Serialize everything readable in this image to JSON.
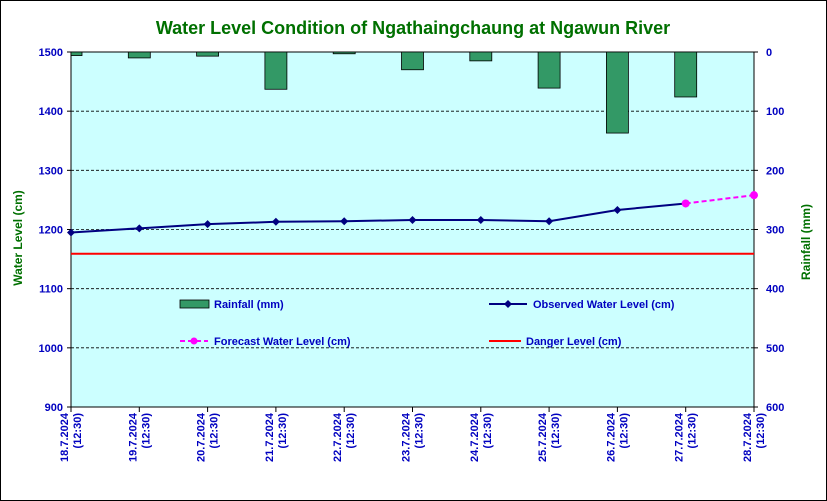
{
  "colors": {
    "plot_bg": "#ccffff",
    "title": "#007000",
    "left_axis_title": "#007000",
    "right_axis_title": "#007000",
    "tick_text": "#0000c0",
    "rainfall_fill": "#339966",
    "observed": "#000080",
    "forecast": "#ff00ff",
    "danger": "#ff0000",
    "grid": "#000000"
  },
  "chart_data": {
    "type": "bar+line",
    "title": "Water Level Condition of  Ngathaingchaung at Ngawun River",
    "ylabel_left": "Water Level (cm)",
    "ylabel_right": "Rainfall (mm)",
    "ylim_left": [
      900,
      1500
    ],
    "yticks_left": [
      "1500",
      "1400",
      "1300",
      "1200",
      "1100",
      "1000",
      "900"
    ],
    "ylim_right": [
      0,
      600
    ],
    "right_axis_inverted": true,
    "yticks_right": [
      "0",
      "100",
      "200",
      "300",
      "400",
      "500",
      "600"
    ],
    "grid": true,
    "categories": [
      [
        "18.7.2024",
        "(12:30)"
      ],
      [
        "19.7.2024",
        "(12:30)"
      ],
      [
        "20.7.2024",
        "(12:30)"
      ],
      [
        "21.7.2024",
        "(12:30)"
      ],
      [
        "22.7.2024",
        "(12:30)"
      ],
      [
        "23.7.2024",
        "(12:30)"
      ],
      [
        "24.7.2024",
        "(12:30)"
      ],
      [
        "25.7.2024",
        "(12:30)"
      ],
      [
        "26.7.2024",
        "(12:30)"
      ],
      [
        "27.7.2024",
        "(12:30)"
      ],
      [
        "28.7.2024",
        "(12:30)"
      ]
    ],
    "series": [
      {
        "name": "Rainfall (mm)",
        "type": "bar",
        "axis": "right",
        "values": [
          6,
          10,
          7,
          63,
          3,
          30,
          15,
          61,
          137,
          76,
          null
        ]
      },
      {
        "name": "Observed Water Level (cm)",
        "type": "line",
        "axis": "left",
        "values": [
          1195,
          1202,
          1209,
          1213,
          1214,
          1216,
          1216,
          1214,
          1233,
          1244,
          null
        ]
      },
      {
        "name": "Forecast Water Level (cm)",
        "type": "line-dashed",
        "axis": "left",
        "values": [
          null,
          null,
          null,
          null,
          null,
          null,
          null,
          null,
          null,
          1244,
          1258
        ]
      },
      {
        "name": "Danger Level (cm)",
        "type": "hline",
        "axis": "left",
        "value": 1159
      }
    ],
    "legend": [
      {
        "label": "Rainfall (mm)",
        "kind": "bar"
      },
      {
        "label": "Observed Water Level (cm)",
        "kind": "line-marker"
      },
      {
        "label": "Forecast Water Level (cm)",
        "kind": "dashed-marker"
      },
      {
        "label": "Danger Level (cm)",
        "kind": "line"
      }
    ]
  }
}
